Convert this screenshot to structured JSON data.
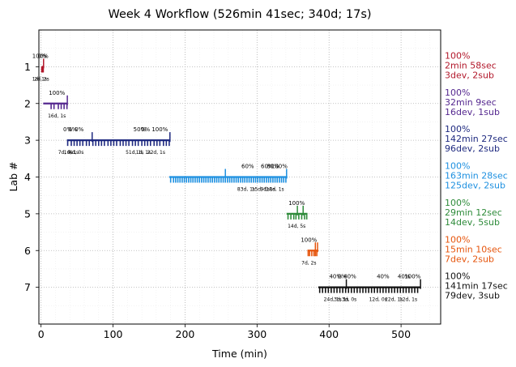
{
  "chart_data": {
    "type": "timeline",
    "title": "Week 4 Workflow (526min 41sec; 340d; 17s)",
    "xlabel": "Time (min)",
    "ylabel": "Lab #",
    "xlim": [
      -3,
      555
    ],
    "ylim": [
      0,
      8
    ],
    "x_ticks": [
      0,
      100,
      200,
      300,
      400,
      500
    ],
    "y_ticks": [
      1,
      2,
      3,
      4,
      5,
      6,
      7
    ],
    "grid": true,
    "labs": [
      {
        "lab": 1,
        "color": "#b2182b",
        "start": 1,
        "end": 3.5,
        "ticks": [
          1.0,
          1.3,
          1.7,
          2.2,
          2.7,
          3.1
        ],
        "tall_ticks": [
          3.5
        ],
        "pct_labels": [
          {
            "x": -1,
            "text": "100%"
          },
          {
            "x": 1.5,
            "text": "0%"
          }
        ],
        "sub_labels": [
          {
            "x": -2,
            "text": "1d, 1s"
          },
          {
            "x": 1,
            "text": "2d, 2s"
          }
        ],
        "summary": {
          "pct": "100%",
          "time": "2min 58sec",
          "counts": "3dev, 2sub"
        }
      },
      {
        "lab": 2,
        "color": "#54278f",
        "start": 3,
        "end": 37,
        "ticks": [
          14,
          18,
          24,
          28,
          32,
          36
        ],
        "tall_ticks": [
          36.5
        ],
        "pct_labels": [
          {
            "x": 22,
            "text": "100%"
          }
        ],
        "sub_labels": [
          {
            "x": 22,
            "text": "16d, 1s"
          }
        ],
        "summary": {
          "pct": "100%",
          "time": "32min 9sec",
          "counts": "16dev, 1sub"
        }
      },
      {
        "lab": 3,
        "color": "#1f2a80",
        "start": 36,
        "end": 179,
        "ticks": [
          37,
          42,
          46,
          50,
          54,
          58,
          63,
          67,
          72,
          76,
          80,
          84,
          88,
          93,
          97,
          101,
          105,
          110,
          114,
          118,
          122,
          127,
          131,
          135,
          140,
          144,
          148,
          152,
          157,
          161,
          165,
          170,
          174,
          178
        ],
        "tall_ticks": [
          71,
          179
        ],
        "pct_labels": [
          {
            "x": 37,
            "text": "0%"
          },
          {
            "x": 44,
            "text": "0%"
          },
          {
            "x": 53,
            "text": "0%"
          },
          {
            "x": 137,
            "text": "50%"
          },
          {
            "x": 145,
            "text": "0%"
          },
          {
            "x": 165,
            "text": "100%"
          }
        ],
        "sub_labels": [
          {
            "x": 34,
            "text": "7d, 9s"
          },
          {
            "x": 42,
            "text": "1d, 1s"
          },
          {
            "x": 49,
            "text": "4d, 0s"
          },
          {
            "x": 130,
            "text": "51d, 1s"
          },
          {
            "x": 142,
            "text": "1d, 1s"
          },
          {
            "x": 160,
            "text": "22d, 1s"
          }
        ],
        "summary": {
          "pct": "100%",
          "time": "142min 27sec",
          "counts": "96dev, 2sub"
        }
      },
      {
        "lab": 4,
        "color": "#1e90e0",
        "start": 178,
        "end": 342,
        "ticks": [
          180,
          184,
          187,
          190,
          193,
          196,
          199,
          202,
          205,
          208,
          211,
          214,
          217,
          220,
          223,
          226,
          229,
          232,
          235,
          238,
          241,
          244,
          247,
          250,
          253,
          256,
          259,
          262,
          265,
          268,
          271,
          274,
          277,
          280,
          283,
          286,
          289,
          292,
          295,
          298,
          301,
          304,
          307,
          310,
          313,
          316,
          319,
          322,
          325,
          328,
          331,
          334,
          337,
          340
        ],
        "tall_ticks": [
          256,
          341
        ],
        "pct_labels": [
          {
            "x": 287,
            "text": "60%"
          },
          {
            "x": 314,
            "text": "60%"
          },
          {
            "x": 322,
            "text": "80%"
          },
          {
            "x": 331,
            "text": "100%"
          }
        ],
        "sub_labels": [
          {
            "x": 285,
            "text": "83d, 1s"
          },
          {
            "x": 305,
            "text": "15d, 1s"
          },
          {
            "x": 315,
            "text": "9d, 1s"
          },
          {
            "x": 325,
            "text": "18d, 1s"
          }
        ],
        "summary": {
          "pct": "100%",
          "time": "163min 28sec",
          "counts": "125dev, 2sub"
        }
      },
      {
        "lab": 5,
        "color": "#2e8b3a",
        "start": 341,
        "end": 370,
        "ticks": [
          343,
          347,
          351,
          354,
          358,
          362,
          366,
          369
        ],
        "tall_ticks": [
          356,
          364
        ],
        "pct_labels": [
          {
            "x": 355,
            "text": "100%"
          }
        ],
        "sub_labels": [
          {
            "x": 355,
            "text": "14d, 5s"
          }
        ],
        "summary": {
          "pct": "100%",
          "time": "29min 12sec",
          "counts": "14dev, 5sub"
        }
      },
      {
        "lab": 6,
        "color": "#e6550d",
        "start": 370,
        "end": 385,
        "ticks": [
          371,
          373,
          376,
          379,
          381,
          383
        ],
        "tall_ticks": [
          381,
          384
        ],
        "pct_labels": [
          {
            "x": 372,
            "text": "100%"
          }
        ],
        "sub_labels": [
          {
            "x": 372,
            "text": "7d, 2s"
          }
        ],
        "summary": {
          "pct": "100%",
          "time": "15min 10sec",
          "counts": "7dev, 2sub"
        }
      },
      {
        "lab": 7,
        "color": "#111111",
        "start": 385,
        "end": 527,
        "ticks": [
          387,
          391,
          395,
          399,
          403,
          407,
          411,
          415,
          419,
          423,
          427,
          431,
          435,
          439,
          443,
          447,
          451,
          455,
          459,
          463,
          467,
          471,
          475,
          479,
          483,
          487,
          491,
          495,
          499,
          503,
          507,
          511,
          515,
          519,
          523
        ],
        "tall_ticks": [
          424,
          527
        ],
        "pct_labels": [
          {
            "x": 409,
            "text": "40%"
          },
          {
            "x": 418,
            "text": "0%"
          },
          {
            "x": 429,
            "text": "40%"
          },
          {
            "x": 475,
            "text": "40%"
          },
          {
            "x": 504,
            "text": "40%"
          },
          {
            "x": 516,
            "text": "100%"
          }
        ],
        "sub_labels": [
          {
            "x": 405,
            "text": "24d, 1s"
          },
          {
            "x": 417,
            "text": "3d, 1s"
          },
          {
            "x": 428,
            "text": "3d, 0s"
          },
          {
            "x": 468,
            "text": "12d, 0s"
          },
          {
            "x": 490,
            "text": "22d, 1s"
          },
          {
            "x": 510,
            "text": "12d, 1s"
          }
        ],
        "summary": {
          "pct": "100%",
          "time": "141min 17sec",
          "counts": "79dev, 3sub"
        }
      }
    ]
  }
}
